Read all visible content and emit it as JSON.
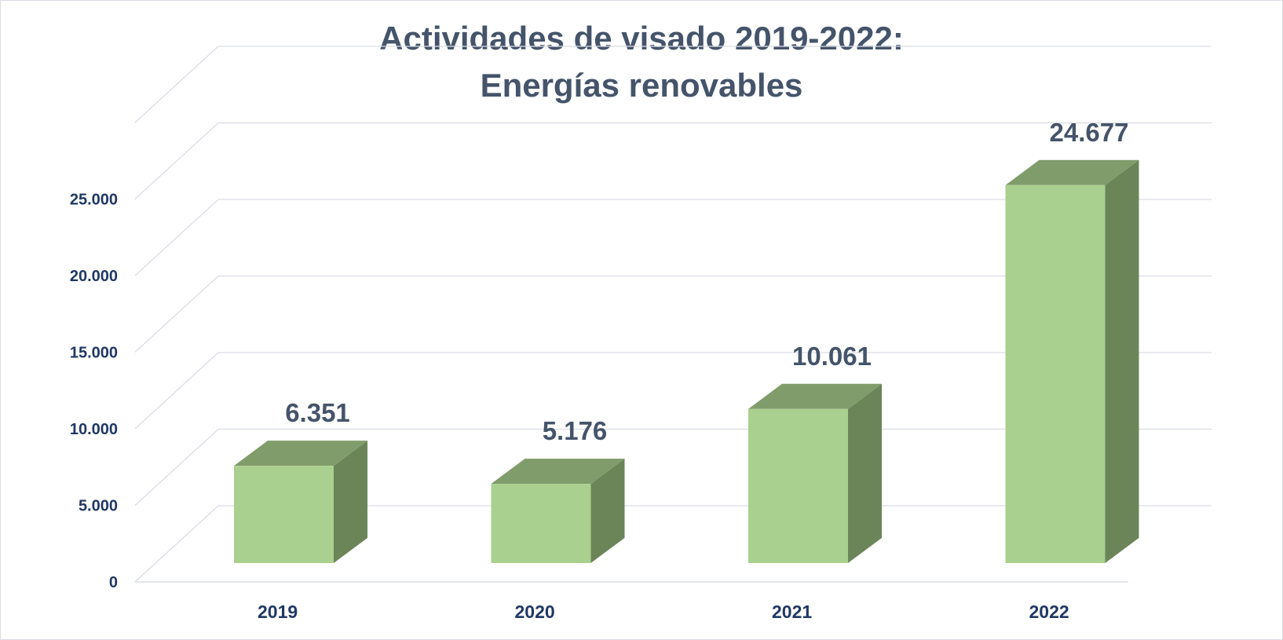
{
  "chart_data": {
    "type": "bar",
    "style": "3d-column",
    "title": "Actividades de visado 2019-2022:",
    "subtitle": "Energías renovables",
    "categories": [
      "2019",
      "2020",
      "2021",
      "2022"
    ],
    "values": [
      6351,
      5176,
      10061,
      24677
    ],
    "data_labels": [
      "6.351",
      "5.176",
      "10.061",
      "24.677"
    ],
    "xlabel": "",
    "ylabel": "",
    "ylim": [
      0,
      30000
    ],
    "yticks": [
      0,
      5000,
      10000,
      15000,
      20000,
      25000
    ],
    "ytick_labels": [
      "0",
      "5.000",
      "10.000",
      "15.000",
      "20.000",
      "25.000"
    ],
    "grid": true,
    "legend": "none",
    "colors": {
      "bar_front": "#a9d08e",
      "bar_top": "#809c6b",
      "bar_side": "#6b8559",
      "grid": "#d9dde5",
      "title": "#44546a",
      "axis_text": "#1f3864",
      "data_label": "#44546a"
    }
  }
}
